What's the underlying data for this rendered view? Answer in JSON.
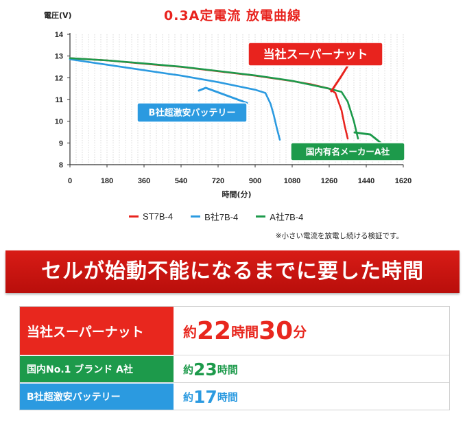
{
  "chart_data": {
    "type": "line",
    "title": "0.3A定電流 放電曲線",
    "ylabel": "電圧(V)",
    "xlabel": "時間(分)",
    "xlim": [
      0,
      1620
    ],
    "ylim": [
      8,
      14
    ],
    "xticks": [
      0,
      180,
      360,
      540,
      720,
      900,
      1080,
      1260,
      1440,
      1620
    ],
    "yticks": [
      8,
      9,
      10,
      11,
      12,
      13,
      14
    ],
    "grid": "vertical-dotted",
    "legend_position": "bottom",
    "series": [
      {
        "name": "ST7B-4",
        "color": "#e8231e",
        "x": [
          0,
          180,
          360,
          540,
          720,
          900,
          1080,
          1170,
          1260,
          1290,
          1320,
          1335,
          1350
        ],
        "y": [
          12.9,
          12.8,
          12.65,
          12.5,
          12.3,
          12.1,
          11.85,
          11.7,
          11.5,
          11.3,
          10.5,
          9.8,
          9.2
        ],
        "callout": "当社スーパーナット"
      },
      {
        "name": "B社7B-4",
        "color": "#2b9ae0",
        "x": [
          0,
          180,
          360,
          540,
          720,
          900,
          950,
          975,
          990,
          1005,
          1020
        ],
        "y": [
          12.85,
          12.6,
          12.35,
          12.1,
          11.8,
          11.45,
          11.3,
          10.8,
          10.3,
          9.7,
          9.15
        ],
        "callout": "B社超激安バッテリー"
      },
      {
        "name": "A社7B-4",
        "color": "#1d9a4b",
        "x": [
          0,
          180,
          360,
          540,
          720,
          900,
          1080,
          1260,
          1320,
          1350,
          1380,
          1400
        ],
        "y": [
          12.9,
          12.8,
          12.66,
          12.51,
          12.31,
          12.11,
          11.86,
          11.5,
          11.35,
          10.9,
          10.0,
          9.2
        ],
        "callout": "国内有名メーカーA社"
      }
    ]
  },
  "legend_items": [
    {
      "label": "ST7B-4",
      "color": "#e8231e"
    },
    {
      "label": "B社7B-4",
      "color": "#2b9ae0"
    },
    {
      "label": "A社7B-4",
      "color": "#1d9a4b"
    }
  ],
  "note": "※小さい電流を放電し続ける検証です。",
  "banner": "セルが始動不能になるまでに要した時間",
  "results": [
    {
      "label": "当社スーパーナット",
      "prefix": "約",
      "v1": "22",
      "u1": "時間",
      "v2": "30",
      "u2": "分"
    },
    {
      "label": "国内No.1 ブランド A社",
      "prefix": "約",
      "v1": "23",
      "u1": "時間"
    },
    {
      "label": "B社超激安バッテリー",
      "prefix": "約",
      "v1": "17",
      "u1": "時間"
    }
  ]
}
